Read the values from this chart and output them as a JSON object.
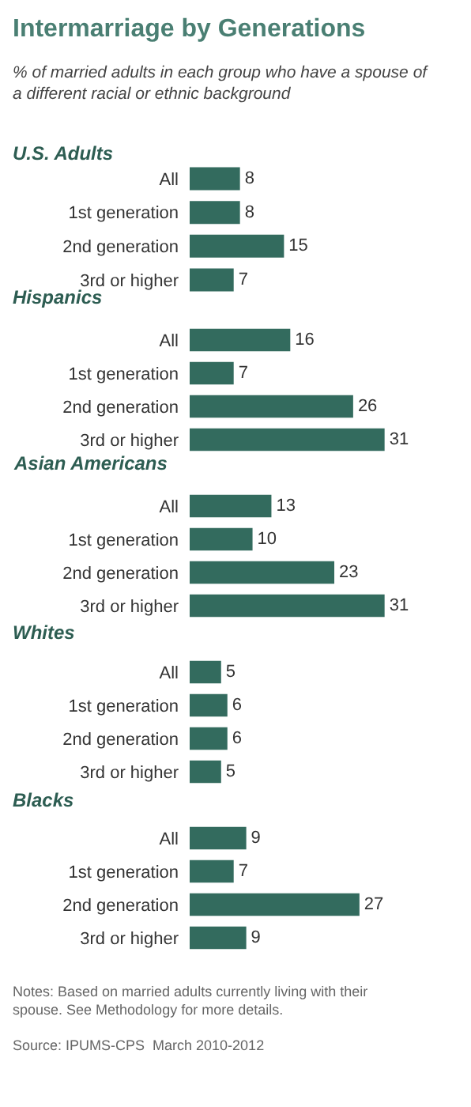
{
  "chart_data": [
    {
      "type": "other",
      "title": "Intermarriage by Generations",
      "subtitle": "% of married adults in each group who have a spouse of a different racial or ethnic background"
    },
    {
      "type": "bar",
      "orientation": "horizontal",
      "title": "U.S. Adults",
      "categories": [
        "All",
        "1st generation",
        "2nd generation",
        "3rd or higher"
      ],
      "values": [
        8,
        8,
        15,
        7
      ],
      "color": "#336b5e",
      "data_labels": true,
      "tick_labels": "y"
    },
    {
      "type": "bar",
      "orientation": "horizontal",
      "title": "Hispanics",
      "categories": [
        "All",
        "1st generation",
        "2nd generation",
        "3rd or higher"
      ],
      "values": [
        16,
        7,
        26,
        31
      ],
      "color": "#336b5e",
      "data_labels": true,
      "tick_labels": "y"
    },
    {
      "type": "bar",
      "orientation": "horizontal",
      "title": "Asian Americans",
      "categories": [
        "All",
        "1st generation",
        "2nd generation",
        "3rd or higher"
      ],
      "values": [
        13,
        10,
        23,
        31
      ],
      "color": "#336b5e",
      "data_labels": true,
      "tick_labels": "y"
    },
    {
      "type": "bar",
      "orientation": "horizontal",
      "title": "Whites",
      "categories": [
        "All",
        "1st generation",
        "2nd generation",
        "3rd or higher"
      ],
      "values": [
        5,
        6,
        6,
        5
      ],
      "color": "#336b5e",
      "data_labels": true,
      "tick_labels": "y"
    },
    {
      "type": "bar",
      "orientation": "horizontal",
      "title": "Blacks",
      "categories": [
        "All",
        "1st generation",
        "2nd generation",
        "3rd or higher"
      ],
      "values": [
        9,
        7,
        27,
        9
      ],
      "color": "#336b5e",
      "data_labels": true,
      "tick_labels": "y"
    },
    {
      "type": "other",
      "annotations": [
        "Notes: Based on married adults currently living with their spouse. See Methodology for more details.",
        "Source: IPUMS-CPS  March 2010-2012"
      ]
    }
  ]
}
